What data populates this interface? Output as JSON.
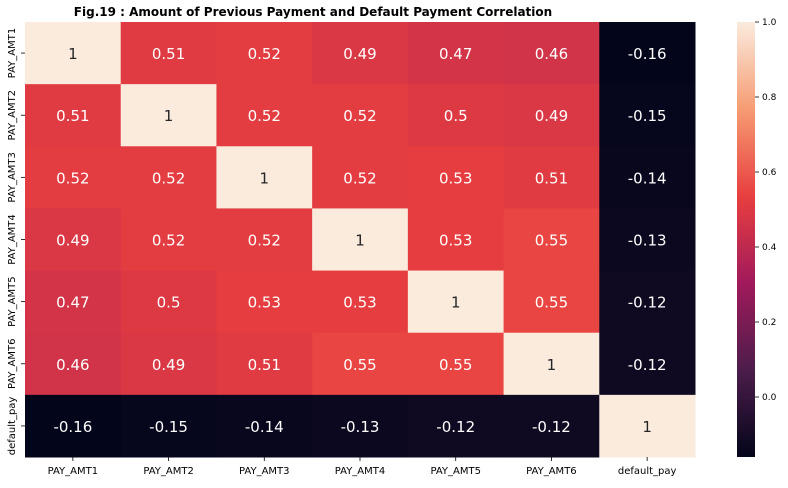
{
  "chart_data": {
    "type": "heatmap",
    "title": "Fig.19 : Amount of Previous Payment and Default Payment Correlation",
    "x_labels": [
      "PAY_AMT1",
      "PAY_AMT2",
      "PAY_AMT3",
      "PAY_AMT4",
      "PAY_AMT5",
      "PAY_AMT6",
      "default_pay"
    ],
    "y_labels": [
      "PAY_AMT1",
      "PAY_AMT2",
      "PAY_AMT3",
      "PAY_AMT4",
      "PAY_AMT5",
      "PAY_AMT6",
      "default_pay"
    ],
    "values": [
      [
        1,
        0.51,
        0.52,
        0.49,
        0.47,
        0.46,
        -0.16
      ],
      [
        0.51,
        1,
        0.52,
        0.52,
        0.5,
        0.49,
        -0.15
      ],
      [
        0.52,
        0.52,
        1,
        0.52,
        0.53,
        0.51,
        -0.14
      ],
      [
        0.49,
        0.52,
        0.52,
        1,
        0.53,
        0.55,
        -0.13
      ],
      [
        0.47,
        0.5,
        0.53,
        0.53,
        1,
        0.55,
        -0.12
      ],
      [
        0.46,
        0.49,
        0.51,
        0.55,
        0.55,
        1,
        -0.12
      ],
      [
        -0.16,
        -0.15,
        -0.14,
        -0.13,
        -0.12,
        -0.12,
        1
      ]
    ],
    "annotations": [
      [
        "1",
        "0.51",
        "0.52",
        "0.49",
        "0.47",
        "0.46",
        "-0.16"
      ],
      [
        "0.51",
        "1",
        "0.52",
        "0.52",
        "0.5",
        "0.49",
        "-0.15"
      ],
      [
        "0.52",
        "0.52",
        "1",
        "0.52",
        "0.53",
        "0.51",
        "-0.14"
      ],
      [
        "0.49",
        "0.52",
        "0.52",
        "1",
        "0.53",
        "0.55",
        "-0.13"
      ],
      [
        "0.47",
        "0.5",
        "0.53",
        "0.53",
        "1",
        "0.55",
        "-0.12"
      ],
      [
        "0.46",
        "0.49",
        "0.51",
        "0.55",
        "0.55",
        "1",
        "-0.12"
      ],
      [
        "-0.16",
        "-0.15",
        "-0.14",
        "-0.13",
        "-0.12",
        "-0.12",
        "1"
      ]
    ],
    "colorbar": {
      "range": [
        -0.16,
        1.0
      ],
      "ticks": [
        "0.0",
        "0.2",
        "0.4",
        "0.6",
        "0.8",
        "1.0"
      ],
      "tick_values": [
        0,
        0.2,
        0.4,
        0.6,
        0.8,
        1.0
      ],
      "colormap": "rocket",
      "colors": [
        "#03051a",
        "#4c1d4b",
        "#a11a5b",
        "#e83f3f",
        "#f69c73",
        "#faebdd"
      ]
    },
    "legend_placement": "right",
    "grid": false
  }
}
